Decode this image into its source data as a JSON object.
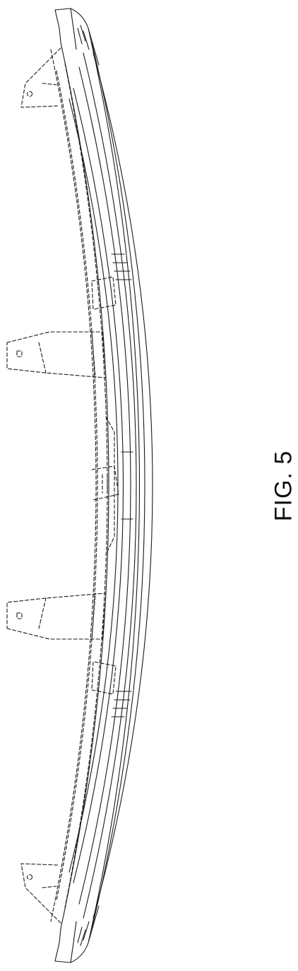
{
  "figure": {
    "label": "FIG. 5"
  },
  "colors": {
    "line": "#1a1a1a",
    "background": "#ffffff"
  }
}
